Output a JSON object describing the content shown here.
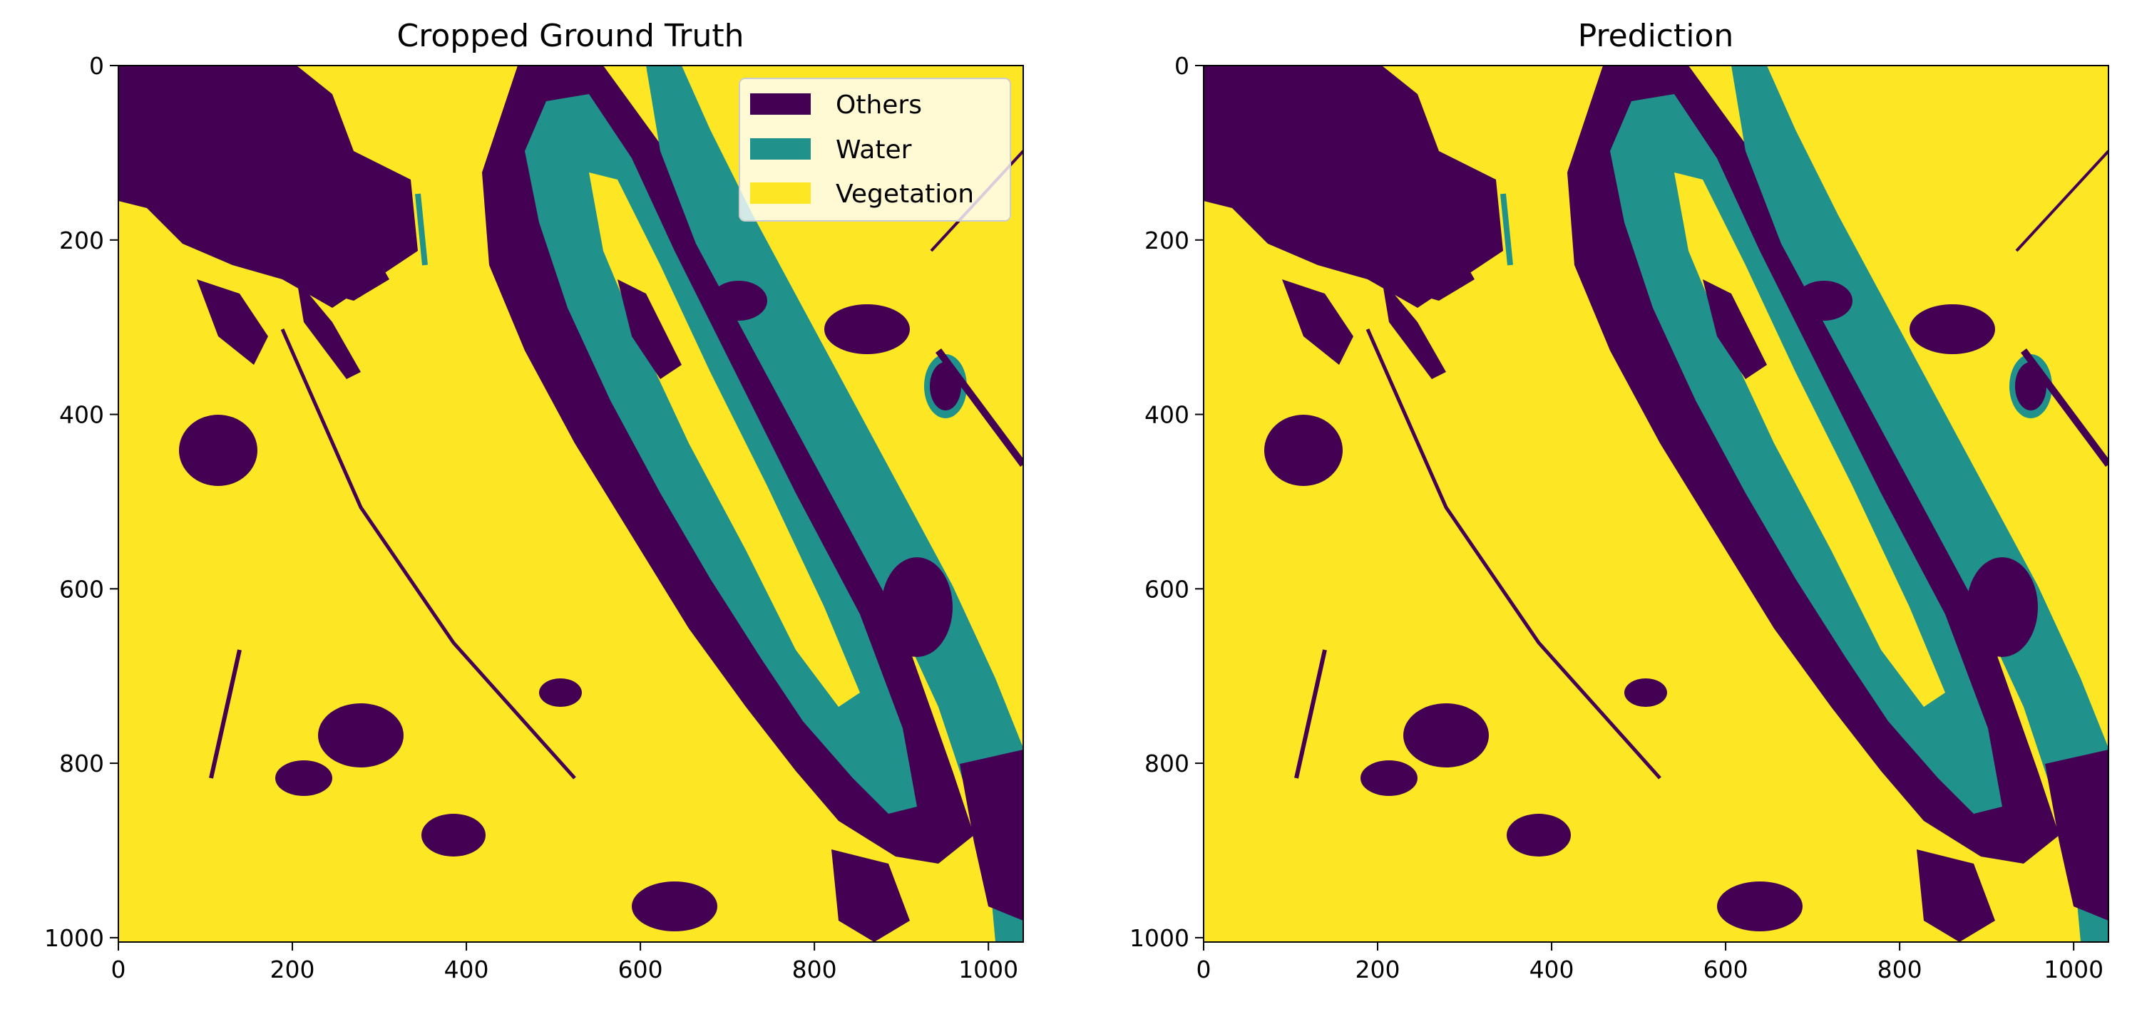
{
  "colors": {
    "others": "#440154",
    "water": "#21918c",
    "vegetation": "#fde725"
  },
  "chart_data": [
    {
      "type": "heatmap",
      "title": "Cropped Ground Truth",
      "xlim": [
        0,
        1040
      ],
      "ylim": [
        1005,
        0
      ],
      "xticks": [
        0,
        200,
        400,
        600,
        800,
        1000
      ],
      "yticks": [
        0,
        200,
        400,
        600,
        800,
        1000
      ],
      "classes": [
        "Others",
        "Water",
        "Vegetation"
      ],
      "legend": {
        "placement": "upper-right",
        "entries": [
          "Others",
          "Water",
          "Vegetation"
        ]
      },
      "grid": false
    },
    {
      "type": "heatmap",
      "title": "Prediction",
      "xlim": [
        0,
        1040
      ],
      "ylim": [
        1005,
        0
      ],
      "xticks": [
        0,
        200,
        400,
        600,
        800,
        1000
      ],
      "yticks": [
        0,
        200,
        400,
        600,
        800,
        1000
      ],
      "classes": [
        "Others",
        "Water",
        "Vegetation"
      ],
      "grid": false
    }
  ]
}
